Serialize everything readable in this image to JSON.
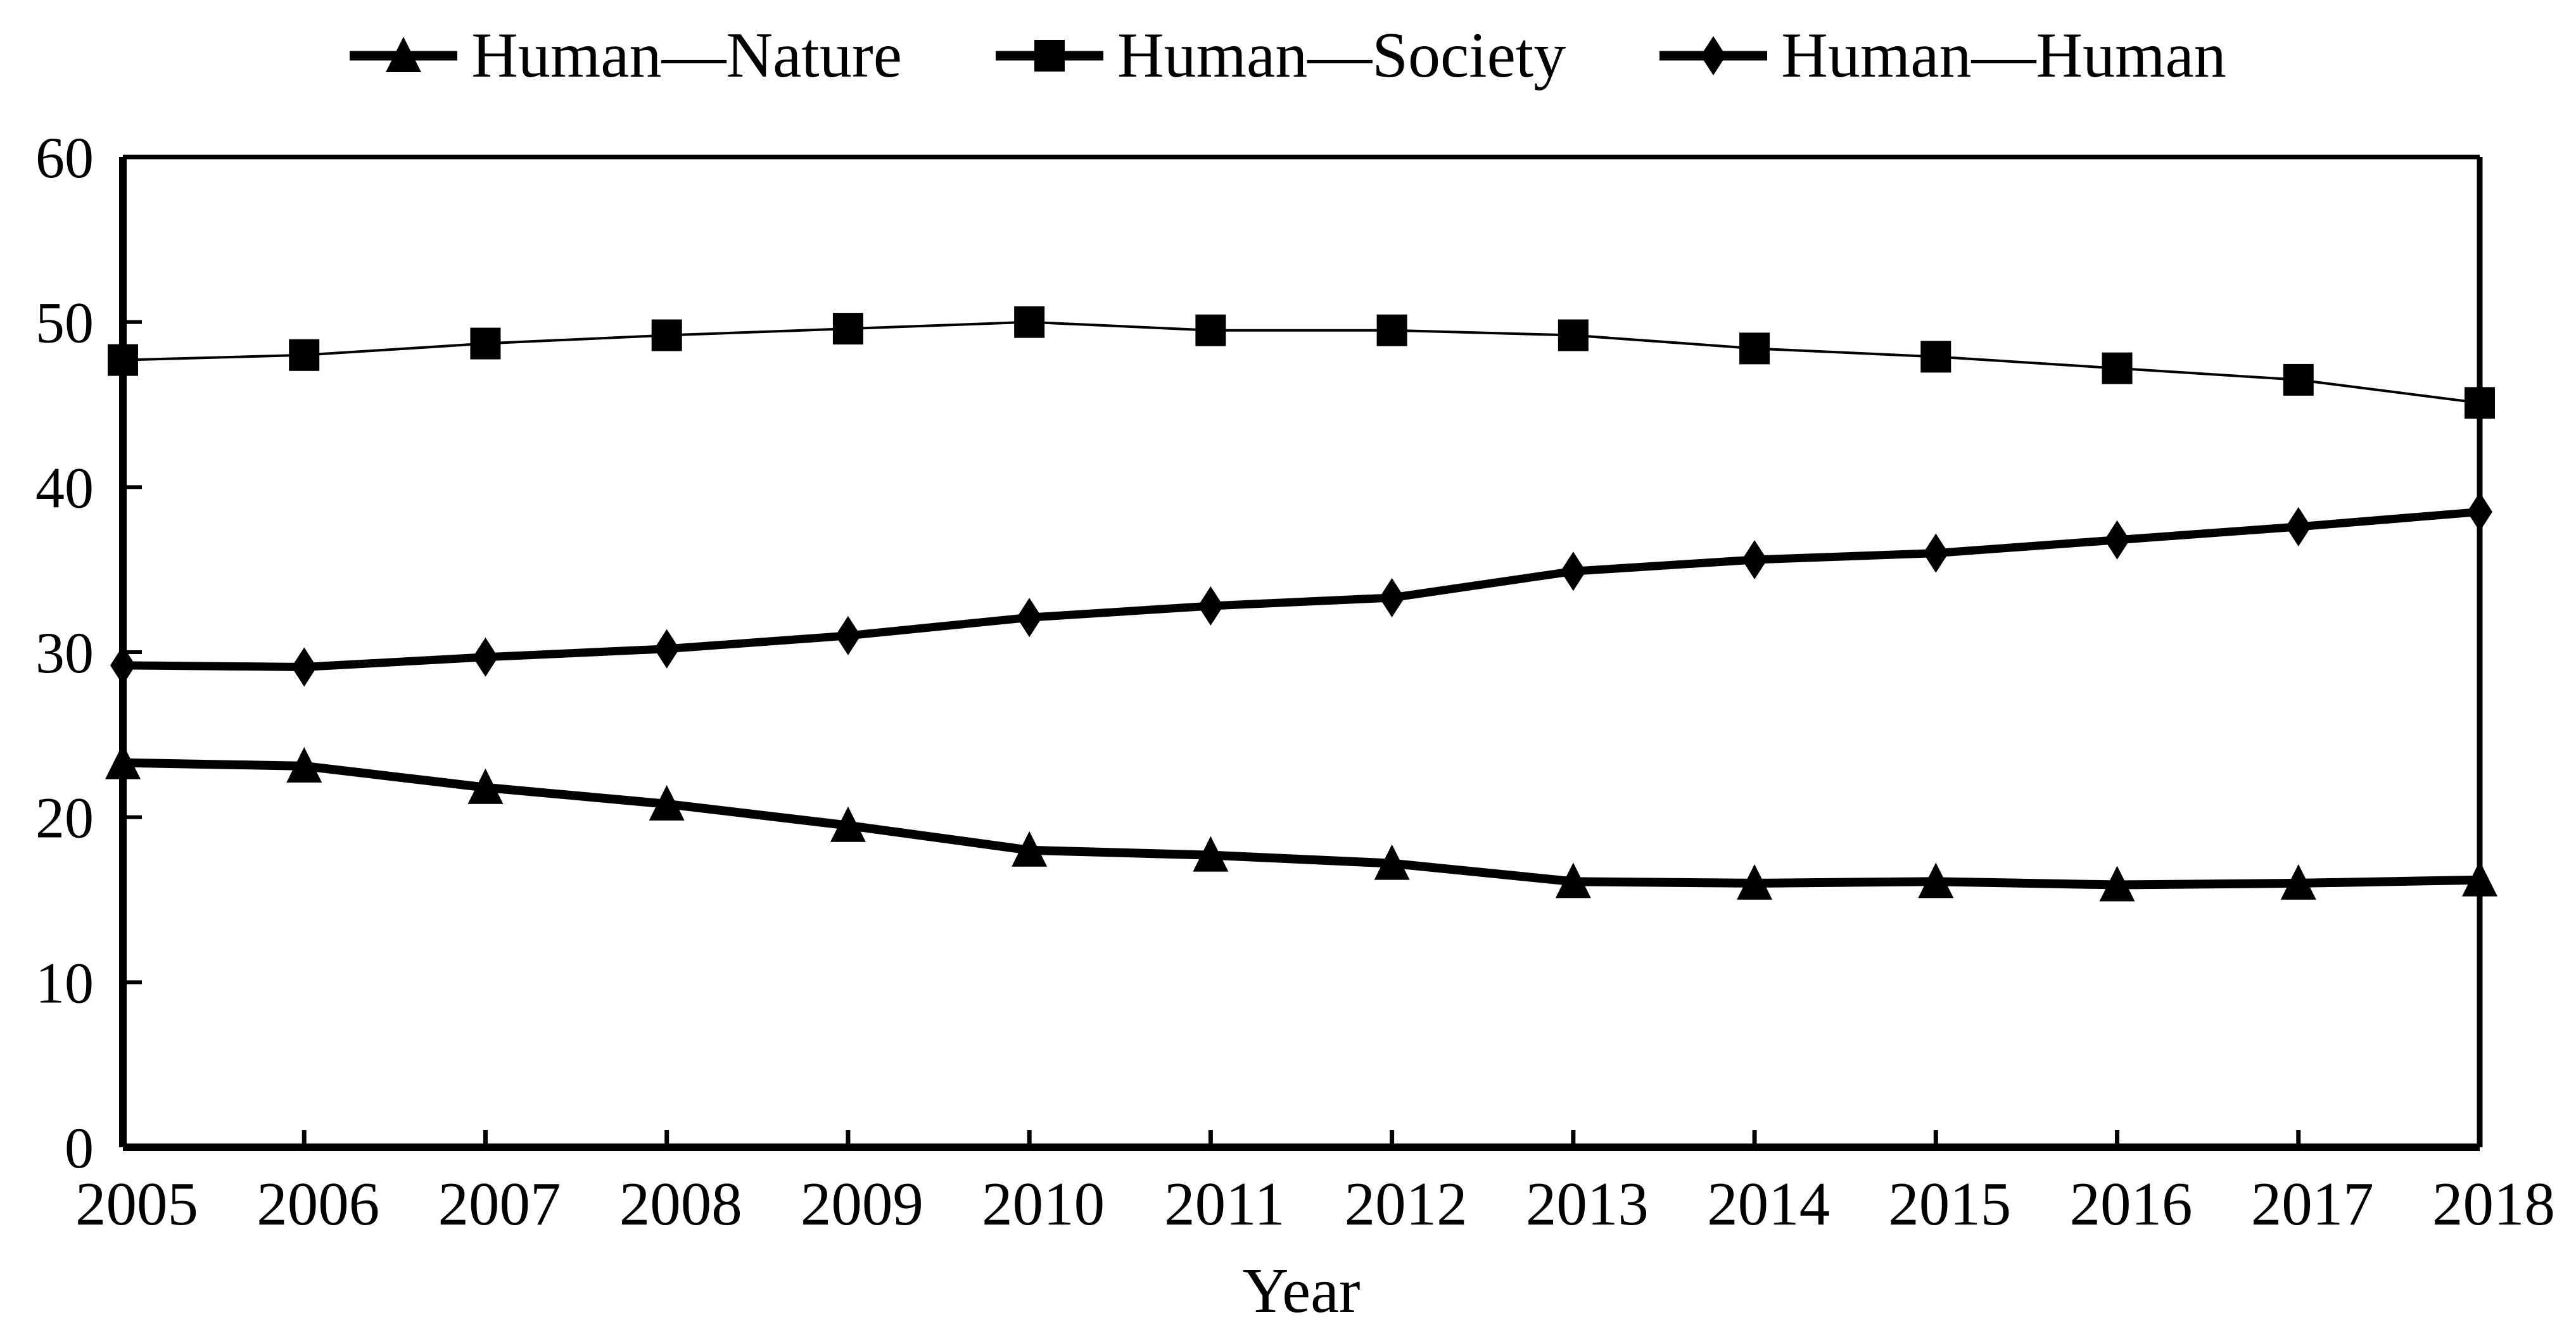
{
  "figure": {
    "x_axis_title": "Year"
  },
  "chart_data": {
    "type": "line",
    "title": "",
    "xlabel": "Year",
    "ylabel": "",
    "x": [
      2005,
      2006,
      2007,
      2008,
      2009,
      2010,
      2011,
      2012,
      2013,
      2014,
      2015,
      2016,
      2017,
      2018
    ],
    "ylim": [
      0,
      60
    ],
    "yticks": [
      0,
      10,
      20,
      30,
      40,
      50,
      60
    ],
    "grid": false,
    "legend_position": "top-center",
    "colors": {
      "foreground": "#000000",
      "background": "#ffffff"
    },
    "series": [
      {
        "name": "Human—Nature",
        "marker": "triangle",
        "values": [
          23.3,
          23.1,
          21.8,
          20.8,
          19.5,
          18.0,
          17.7,
          17.2,
          16.1,
          16.0,
          16.1,
          15.9,
          16.0,
          16.2
        ]
      },
      {
        "name": "Human—Society",
        "marker": "square",
        "values": [
          47.7,
          48.0,
          48.7,
          49.2,
          49.6,
          50.0,
          49.5,
          49.5,
          49.2,
          48.4,
          47.9,
          47.2,
          46.5,
          45.1
        ]
      },
      {
        "name": "Human—Human",
        "marker": "diamond",
        "values": [
          29.2,
          29.1,
          29.7,
          30.2,
          31.0,
          32.1,
          32.8,
          33.3,
          34.9,
          35.6,
          36.0,
          36.8,
          37.6,
          38.5
        ]
      }
    ]
  }
}
